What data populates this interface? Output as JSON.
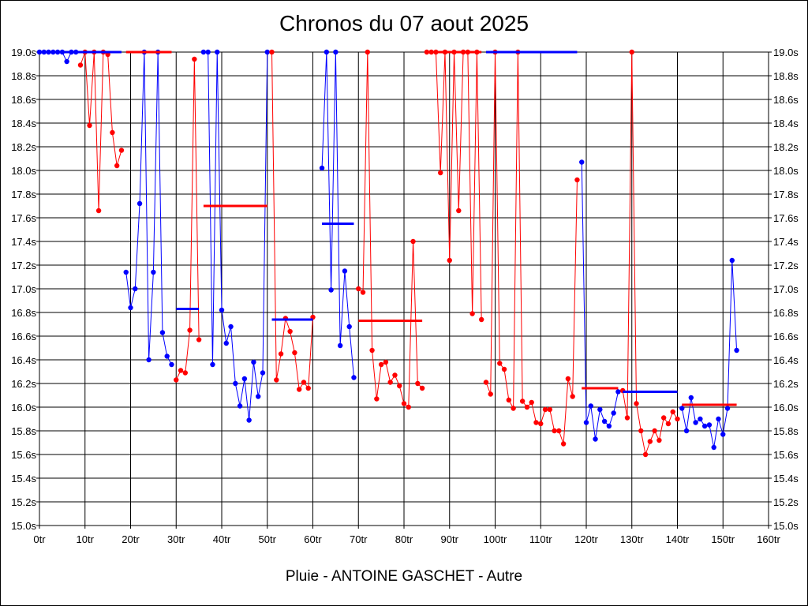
{
  "title": "Chronos du 07 aout 2025",
  "subtitle": "Pluie - ANTOINE GASCHET - Autre",
  "colors": {
    "red": "#ff0000",
    "blue": "#0000ff",
    "grid": "#000000",
    "background": "#ffffff"
  },
  "chart_data": {
    "type": "line",
    "title": "Chronos du 07 aout 2025",
    "subtitle": "Pluie - ANTOINE GASCHET - Autre",
    "xlabel": "",
    "ylabel": "",
    "xlim": [
      0,
      160
    ],
    "ylim": [
      15.0,
      19.0
    ],
    "x_ticks": [
      0,
      10,
      20,
      30,
      40,
      50,
      60,
      70,
      80,
      90,
      100,
      110,
      120,
      130,
      140,
      150,
      160
    ],
    "x_tick_labels": [
      "0tr",
      "10tr",
      "20tr",
      "30tr",
      "40tr",
      "50tr",
      "60tr",
      "70tr",
      "80tr",
      "90tr",
      "100tr",
      "110tr",
      "120tr",
      "130tr",
      "140tr",
      "150tr",
      "160tr"
    ],
    "y_ticks": [
      15.0,
      15.2,
      15.4,
      15.6,
      15.8,
      16.0,
      16.2,
      16.4,
      16.6,
      16.8,
      17.0,
      17.2,
      17.4,
      17.6,
      17.8,
      18.0,
      18.2,
      18.4,
      18.6,
      18.8,
      19.0
    ],
    "y_tick_labels": [
      "15.0s",
      "15.2s",
      "15.4s",
      "15.6s",
      "15.8s",
      "16.0s",
      "16.2s",
      "16.4s",
      "16.6s",
      "16.8s",
      "17.0s",
      "17.2s",
      "17.4s",
      "17.6s",
      "17.8s",
      "18.0s",
      "18.2s",
      "18.4s",
      "18.6s",
      "18.8s",
      "19.0s"
    ],
    "grid": true,
    "y_axis_labels_both_sides": true,
    "segments": [
      {
        "color": "blue",
        "mean": 19.0,
        "x": [
          0,
          1,
          2,
          3,
          4,
          5,
          6,
          7,
          8
        ],
        "y": [
          19.0,
          19.0,
          19.0,
          19.0,
          19.0,
          19.0,
          18.92,
          19.0,
          19.0
        ]
      },
      {
        "color": "red",
        "mean": 19.0,
        "x": [
          9,
          10,
          11,
          12,
          13,
          14,
          15,
          16,
          17,
          18
        ],
        "y": [
          18.89,
          19.0,
          18.38,
          19.0,
          17.66,
          19.0,
          18.98,
          18.32,
          18.04,
          18.17
        ]
      },
      {
        "color": "blue",
        "mean": 19.0,
        "x": [
          19,
          20,
          21,
          22,
          23,
          24,
          25,
          26,
          27,
          28,
          29
        ],
        "y": [
          17.14,
          16.84,
          17.0,
          17.72,
          19.0,
          16.4,
          17.14,
          19.0,
          16.63,
          16.43,
          16.36
        ]
      },
      {
        "color": "red",
        "mean": 16.83,
        "x": [
          30,
          31,
          32,
          33,
          34,
          35
        ],
        "y": [
          16.23,
          16.31,
          16.29,
          16.65,
          18.94,
          16.57
        ]
      },
      {
        "color": "blue",
        "mean": 17.7,
        "x": [
          36,
          37,
          38,
          39,
          40,
          41,
          42,
          43,
          44,
          45,
          46,
          47,
          48,
          49,
          50
        ],
        "y": [
          19.0,
          19.0,
          16.36,
          19.0,
          16.82,
          16.54,
          16.68,
          16.2,
          16.01,
          16.24,
          15.89,
          16.38,
          16.09,
          16.29,
          19.0
        ]
      },
      {
        "color": "red",
        "mean": 16.74,
        "x": [
          51,
          52,
          53,
          54,
          55,
          56,
          57,
          58,
          59,
          60
        ],
        "y": [
          19.0,
          16.23,
          16.45,
          16.75,
          16.64,
          16.46,
          16.15,
          16.21,
          16.16,
          16.76
        ]
      },
      {
        "color": "blue",
        "mean": 17.55,
        "x": [
          62,
          63,
          64,
          65,
          66,
          67,
          68,
          69
        ],
        "y": [
          18.02,
          19.0,
          16.99,
          19.0,
          16.52,
          17.15,
          16.68,
          16.25
        ]
      },
      {
        "color": "red",
        "mean": 16.73,
        "x": [
          70,
          71,
          72,
          73,
          74,
          75,
          76,
          77,
          78,
          79,
          80,
          81,
          82,
          83,
          84
        ],
        "y": [
          17.0,
          16.97,
          19.0,
          16.48,
          16.07,
          16.36,
          16.38,
          16.21,
          16.27,
          16.18,
          16.03,
          16.0,
          17.4,
          16.2,
          16.16
        ]
      },
      {
        "color": "red",
        "mean": 19.0,
        "x": [
          85,
          86,
          87,
          88,
          89,
          90,
          91,
          92,
          93,
          94,
          95,
          96,
          97
        ],
        "y": [
          19.0,
          19.0,
          19.0,
          17.98,
          19.0,
          17.24,
          19.0,
          17.66,
          19.0,
          19.0,
          16.79,
          19.0,
          16.74
        ]
      },
      {
        "color": "red",
        "mean": 19.0,
        "x": [
          98,
          99,
          100,
          101,
          102,
          103,
          104,
          105,
          106,
          107,
          108,
          109,
          110,
          111,
          112,
          113,
          114,
          115,
          116,
          117,
          118
        ],
        "y": [
          16.21,
          16.11,
          19.0,
          16.37,
          16.32,
          16.06,
          15.99,
          19.0,
          16.05,
          16.0,
          16.04,
          15.87,
          15.86,
          15.98,
          15.98,
          15.8,
          15.8,
          15.69,
          16.24,
          16.09,
          17.92
        ]
      },
      {
        "color": "blue",
        "mean": 16.13,
        "x": [
          119,
          120,
          121,
          122,
          123,
          124,
          125,
          126,
          127
        ],
        "y": [
          18.07,
          15.87,
          16.01,
          15.73,
          15.98,
          15.88,
          15.84,
          15.95,
          16.13
        ]
      },
      {
        "color": "red",
        "mean": 16.16,
        "x": [
          128,
          129,
          130,
          131,
          132,
          133,
          134,
          135,
          136,
          137,
          138,
          139,
          140
        ],
        "y": [
          16.14,
          15.91,
          19.0,
          16.03,
          15.8,
          15.6,
          15.71,
          15.8,
          15.72,
          15.91,
          15.86,
          15.96,
          15.9
        ]
      },
      {
        "color": "blue",
        "mean": 16.02,
        "x": [
          141,
          142,
          143,
          144,
          145,
          146,
          147,
          148,
          149,
          150,
          151,
          152,
          153
        ],
        "y": [
          15.99,
          15.8,
          16.08,
          15.87,
          15.9,
          15.84,
          15.85,
          15.66,
          15.9,
          15.77,
          15.99,
          17.24,
          16.48
        ]
      }
    ],
    "mean_lines": [
      {
        "color": "blue",
        "x0": 0,
        "x1": 18,
        "y": 19.0
      },
      {
        "color": "red",
        "x0": 19,
        "x1": 29,
        "y": 19.0
      },
      {
        "color": "blue",
        "x0": 30,
        "x1": 35,
        "y": 16.83
      },
      {
        "color": "red",
        "x0": 36,
        "x1": 50,
        "y": 17.7
      },
      {
        "color": "blue",
        "x0": 51,
        "x1": 60,
        "y": 16.74
      },
      {
        "color": "blue",
        "x0": 62,
        "x1": 69,
        "y": 17.55
      },
      {
        "color": "red",
        "x0": 70,
        "x1": 84,
        "y": 16.73
      },
      {
        "color": "red",
        "x0": 85,
        "x1": 97,
        "y": 19.0
      },
      {
        "color": "blue",
        "x0": 98,
        "x1": 118,
        "y": 19.0
      },
      {
        "color": "red",
        "x0": 119,
        "x1": 127,
        "y": 16.16
      },
      {
        "color": "blue",
        "x0": 128,
        "x1": 140,
        "y": 16.13
      },
      {
        "color": "red",
        "x0": 141,
        "x1": 153,
        "y": 16.02
      }
    ]
  }
}
